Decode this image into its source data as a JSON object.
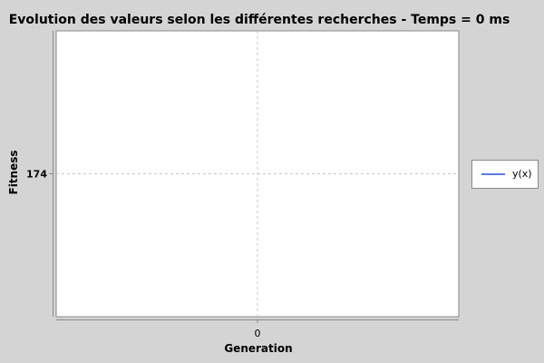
{
  "chart_data": {
    "type": "line",
    "title": "Evolution des valeurs selon les différentes recherches - Temps = 0 ms",
    "xlabel": "Generation",
    "ylabel": "Fitness",
    "x_ticks": [
      "0"
    ],
    "y_ticks": [
      "174"
    ],
    "xlim": [
      -1,
      1
    ],
    "ylim": [
      173,
      175
    ],
    "grid": true,
    "legend_position": "right",
    "series": [
      {
        "name": "y(x)",
        "color": "#5a7ee6",
        "x": [
          0
        ],
        "y": [
          174
        ]
      }
    ]
  }
}
